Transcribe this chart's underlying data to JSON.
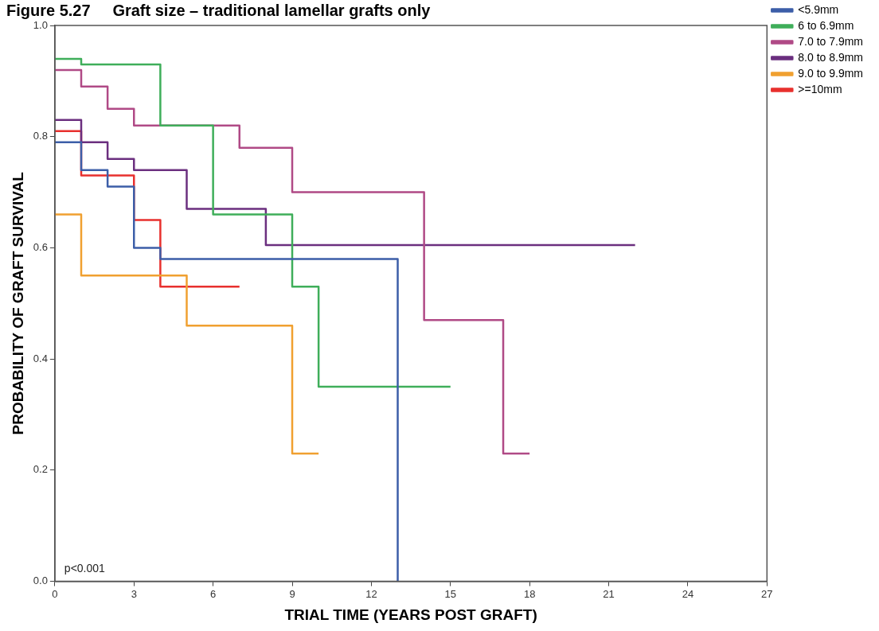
{
  "chart_data": {
    "type": "step",
    "title": "Figure 5.27     Graft size – traditional lamellar grafts only",
    "xlabel": "TRIAL TIME (YEARS POST GRAFT)",
    "ylabel": "PROBABILITY OF GRAFT SURVIVAL",
    "series": [
      {
        "name": "<5.9mm",
        "color": "#3c5ea8",
        "x": [
          0,
          1,
          2,
          3,
          4,
          13,
          13
        ],
        "values": [
          0.79,
          0.74,
          0.71,
          0.6,
          0.58,
          0.0,
          0.0
        ]
      },
      {
        "name": "6 to 6.9mm",
        "color": "#3fae5a",
        "x": [
          0,
          1,
          4,
          6,
          9,
          10,
          15
        ],
        "values": [
          0.94,
          0.93,
          0.82,
          0.66,
          0.53,
          0.35,
          0.35
        ]
      },
      {
        "name": "7.0 to 7.9mm",
        "color": "#b04a86",
        "x": [
          0,
          1,
          2,
          3,
          7,
          9,
          14,
          17,
          18
        ],
        "values": [
          0.92,
          0.89,
          0.85,
          0.82,
          0.78,
          0.7,
          0.47,
          0.23,
          0.23
        ]
      },
      {
        "name": "8.0 to 8.9mm",
        "color": "#6b2f7f",
        "x": [
          0,
          1,
          2,
          3,
          5,
          8,
          22
        ],
        "values": [
          0.83,
          0.79,
          0.76,
          0.74,
          0.67,
          0.605,
          0.605
        ]
      },
      {
        "name": "9.0 to 9.9mm",
        "color": "#f0a030",
        "x": [
          0,
          1,
          5,
          9,
          10
        ],
        "values": [
          0.66,
          0.55,
          0.46,
          0.23,
          0.23
        ]
      },
      {
        "name": ">=10mm",
        "color": "#e8302e",
        "x": [
          0,
          1,
          3,
          4,
          7
        ],
        "values": [
          0.81,
          0.73,
          0.65,
          0.53,
          0.53
        ]
      }
    ],
    "xlim": [
      0,
      27
    ],
    "xticks": [
      0,
      3,
      6,
      9,
      12,
      15,
      18,
      21,
      24,
      27
    ],
    "ylim": [
      0,
      1
    ],
    "yticks": [
      {
        "value": 0,
        "label": "0.0"
      },
      {
        "value": 0.2,
        "label": "0.2"
      },
      {
        "value": 0.4,
        "label": "0.4"
      },
      {
        "value": 0.6,
        "label": "0.6"
      },
      {
        "value": 0.8,
        "label": "0.8"
      },
      {
        "value": 1,
        "label": "1.0"
      }
    ],
    "annotations": [
      "p<0.001"
    ],
    "grid": false,
    "legend": "right",
    "marker": "none",
    "line_style": "solid"
  }
}
